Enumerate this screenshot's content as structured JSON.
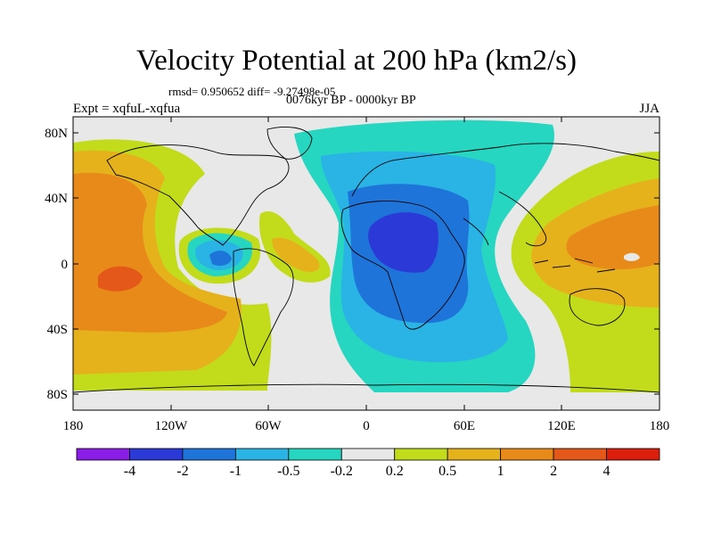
{
  "title": "Velocity Potential at 200 hPa (km2/s)",
  "stats": "rmsd= 0.950652 diff= -9.27498e-05",
  "period": "0076kyr BP - 0000kyr BP",
  "experiment": "Expt = xqfuL-xqfua",
  "season": "JJA",
  "lat_labels": [
    "80N",
    "40N",
    "0",
    "40S",
    "80S"
  ],
  "lon_labels": [
    "180",
    "120W",
    "60W",
    "0",
    "60E",
    "120E",
    "180"
  ],
  "colorbar": {
    "labels": [
      "-4",
      "-2",
      "-1",
      "-0.5",
      "-0.2",
      "0.2",
      "0.5",
      "1",
      "2",
      "4"
    ],
    "colors": [
      "#8a1ee6",
      "#2b3ad6",
      "#1e74d8",
      "#2ab4e6",
      "#26d6c0",
      "#e8e8e8",
      "#c2dc1c",
      "#e6b21c",
      "#e88a1a",
      "#e4581a",
      "#dc1e0c"
    ]
  }
}
